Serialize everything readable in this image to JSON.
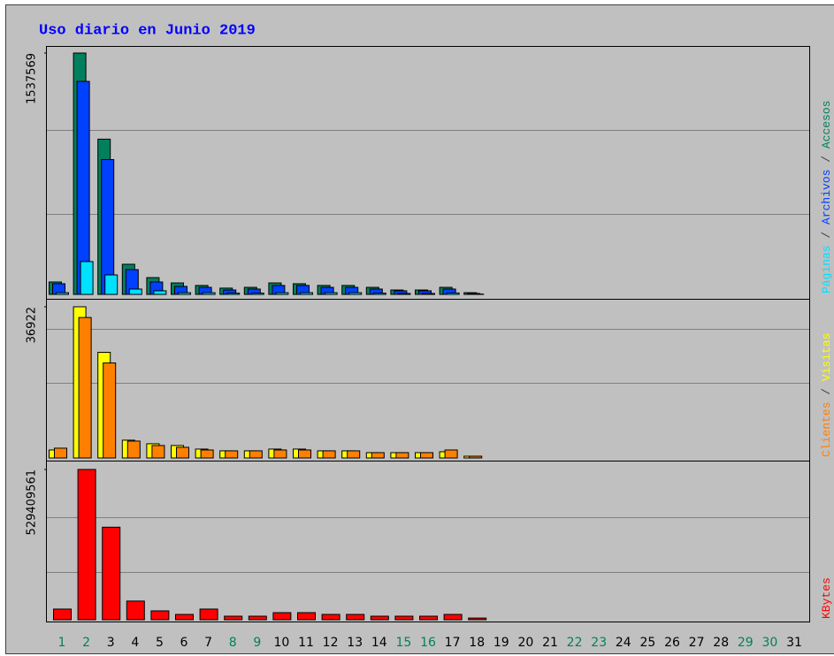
{
  "chart_data": [
    {
      "type": "bar",
      "title": "Uso diario en Junio 2019",
      "ylim": [
        0,
        1537569
      ],
      "yticks": [
        1537569
      ],
      "series": [
        {
          "name": "Accesos",
          "color": "#00805c",
          "values": [
            79000,
            1537569,
            989000,
            192000,
            107000,
            73000,
            57000,
            40000,
            45000,
            73000,
            68000,
            57000,
            57000,
            45000,
            28000,
            28000,
            45000,
            11000,
            0,
            0,
            0,
            0,
            0,
            0,
            0,
            0,
            0,
            0,
            0,
            0,
            0
          ]
        },
        {
          "name": "Archivos",
          "color": "#0040ff",
          "values": [
            68000,
            1357000,
            859000,
            158000,
            79000,
            51000,
            45000,
            28000,
            34000,
            57000,
            57000,
            45000,
            45000,
            34000,
            23000,
            23000,
            34000,
            6000,
            0,
            0,
            0,
            0,
            0,
            0,
            0,
            0,
            0,
            0,
            0,
            0,
            0
          ]
        },
        {
          "name": "Páginas",
          "color": "#00e0ff",
          "values": [
            11000,
            209000,
            124000,
            34000,
            23000,
            11000,
            11000,
            8000,
            8000,
            11000,
            11000,
            11000,
            11000,
            8000,
            6000,
            6000,
            9000,
            2000,
            0,
            0,
            0,
            0,
            0,
            0,
            0,
            0,
            0,
            0,
            0,
            0,
            0
          ]
        }
      ],
      "legend_separator": " / "
    },
    {
      "type": "bar",
      "ylim": [
        0,
        36922
      ],
      "yticks": [
        36922
      ],
      "series": [
        {
          "name": "Visitas",
          "color": "#ffff00",
          "values": [
            1950,
            36922,
            25800,
            4340,
            3470,
            3040,
            2170,
            1740,
            1740,
            2170,
            2170,
            1740,
            1740,
            1300,
            1300,
            1300,
            1520,
            430,
            0,
            0,
            0,
            0,
            0,
            0,
            0,
            0,
            0,
            0,
            0,
            0,
            0
          ]
        },
        {
          "name": "Clientes",
          "color": "#ff8000",
          "values": [
            2390,
            34300,
            23200,
            4120,
            3040,
            2600,
            1950,
            1740,
            1740,
            1950,
            1950,
            1740,
            1740,
            1300,
            1300,
            1300,
            1950,
            430,
            0,
            0,
            0,
            0,
            0,
            0,
            0,
            0,
            0,
            0,
            0,
            0,
            0
          ]
        }
      ],
      "legend_separator": " / "
    },
    {
      "type": "bar",
      "ylim": [
        0,
        529409561
      ],
      "yticks": [
        529409561
      ],
      "series": [
        {
          "name": "KBytes",
          "color": "#ff0000",
          "values": [
            37600000,
            529409561,
            326000000,
            65800000,
            31300000,
            18800000,
            37600000,
            12500000,
            12500000,
            25000000,
            25000000,
            18800000,
            18800000,
            12500000,
            12500000,
            12500000,
            18800000,
            6000000,
            0,
            0,
            0,
            0,
            0,
            0,
            0,
            0,
            0,
            0,
            0,
            0,
            0
          ]
        }
      ],
      "categories": [
        "1",
        "2",
        "3",
        "4",
        "5",
        "6",
        "7",
        "8",
        "9",
        "10",
        "11",
        "12",
        "13",
        "14",
        "15",
        "16",
        "17",
        "18",
        "19",
        "20",
        "21",
        "22",
        "23",
        "24",
        "25",
        "26",
        "27",
        "28",
        "29",
        "30",
        "31"
      ],
      "category_colors": [
        "#00805c",
        "#00805c",
        "#000000",
        "#000000",
        "#000000",
        "#000000",
        "#000000",
        "#00805c",
        "#00805c",
        "#000000",
        "#000000",
        "#000000",
        "#000000",
        "#000000",
        "#00805c",
        "#00805c",
        "#000000",
        "#000000",
        "#000000",
        "#000000",
        "#000000",
        "#00805c",
        "#00805c",
        "#000000",
        "#000000",
        "#000000",
        "#000000",
        "#000000",
        "#00805c",
        "#00805c",
        "#000000"
      ]
    }
  ]
}
